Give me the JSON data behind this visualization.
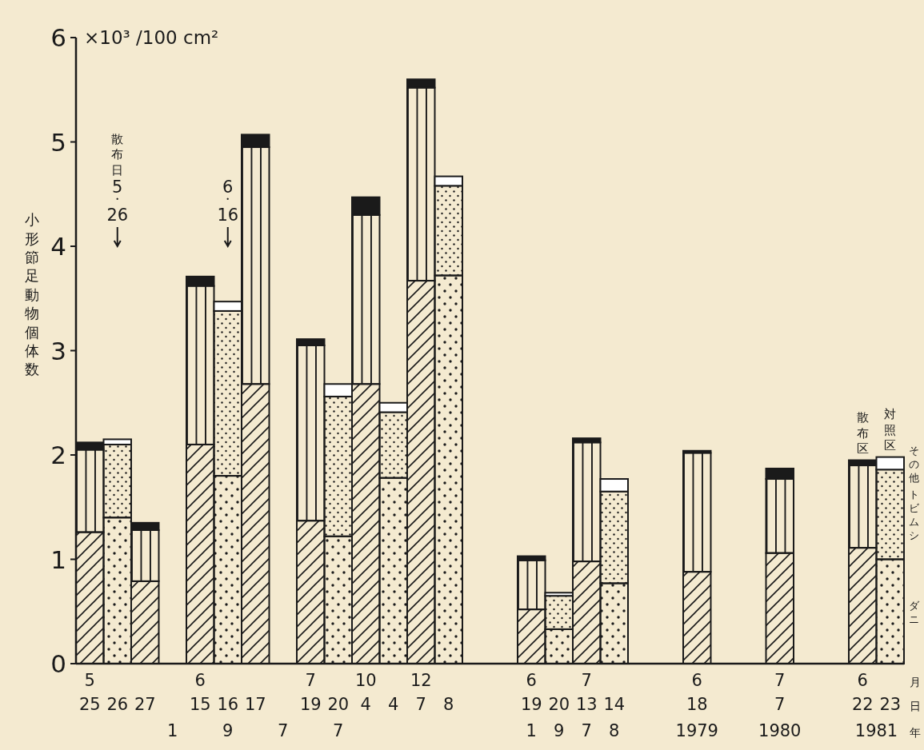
{
  "chart_data": {
    "type": "bar",
    "stacked": true,
    "title": "×10³ /100 cm²",
    "ylabel": "小形節足動物個体数",
    "xlabel": "月日年",
    "categories": [
      "5\n25",
      "26",
      "27",
      null,
      "6\n15",
      "16",
      "17",
      null,
      "7\n19",
      "20",
      "10\n4",
      "4",
      "12\n7",
      "8",
      null,
      null,
      "6\n19",
      "20",
      "7\n13",
      "14",
      null,
      null,
      "6\n18",
      null,
      null,
      "7\n7",
      null,
      null,
      "6\n22",
      "23"
    ],
    "series": [
      {
        "color": "#1a1a1a",
        "values": [
          1.26,
          null,
          0.79,
          null,
          2.1,
          null,
          2.68,
          null,
          1.37,
          null,
          2.68,
          null,
          3.67,
          null,
          null,
          null,
          0.52,
          null,
          0.98,
          null,
          null,
          null,
          0.88,
          null,
          null,
          1.06,
          null,
          null,
          1.11,
          null
        ]
      },
      {
        "name": "ダニ",
        "color": "#1a1a1a",
        "values": [
          null,
          1.4,
          null,
          null,
          null,
          1.8,
          null,
          null,
          null,
          1.22,
          null,
          1.78,
          null,
          3.72,
          null,
          null,
          null,
          0.33,
          null,
          0.77,
          null,
          null,
          null,
          null,
          null,
          null,
          null,
          null,
          null,
          1.0
        ]
      },
      {
        "color": "#1a1a1a",
        "values": [
          0.79,
          null,
          0.49,
          null,
          1.52,
          null,
          2.27,
          null,
          1.68,
          null,
          1.62,
          null,
          1.85,
          null,
          null,
          null,
          0.47,
          null,
          1.14,
          null,
          null,
          null,
          1.14,
          null,
          null,
          0.71,
          null,
          null,
          0.79,
          null
        ]
      },
      {
        "name": "トビムシ",
        "color": "#1a1a1a",
        "values": [
          null,
          0.7,
          null,
          null,
          null,
          1.58,
          null,
          null,
          null,
          1.34,
          null,
          0.63,
          null,
          0.86,
          null,
          null,
          null,
          0.32,
          null,
          0.88,
          null,
          null,
          null,
          null,
          null,
          null,
          null,
          null,
          null,
          0.86
        ]
      },
      {
        "color": "#1a1a1a",
        "values": [
          0.07,
          null,
          0.07,
          null,
          0.09,
          null,
          0.12,
          null,
          0.06,
          null,
          0.17,
          null,
          0.08,
          null,
          null,
          null,
          0.04,
          null,
          0.04,
          null,
          null,
          null,
          0.02,
          null,
          null,
          0.1,
          null,
          null,
          0.05,
          null
        ]
      },
      {
        "name": "その他",
        "color": "#ffffff",
        "values": [
          null,
          0.05,
          null,
          null,
          null,
          0.09,
          null,
          null,
          null,
          0.12,
          null,
          0.09,
          null,
          0.09,
          null,
          null,
          null,
          0.03,
          null,
          0.12,
          null,
          null,
          null,
          null,
          null,
          null,
          null,
          null,
          null,
          0.12
        ]
      }
    ],
    "ylim": [
      0,
      6
    ],
    "yticks": [
      0,
      1,
      2,
      3,
      4,
      5,
      6
    ],
    "annotations": [
      "散布日\n5・26",
      "6・16",
      "1 9 7 7",
      "1 9 7 8",
      "1979",
      "1980",
      "1981",
      {
        "text": "散布区",
        "x": "6\n22",
        "y": 1.95
      },
      {
        "text": "対照区",
        "x": "23",
        "y": 1.98
      }
    ]
  }
}
